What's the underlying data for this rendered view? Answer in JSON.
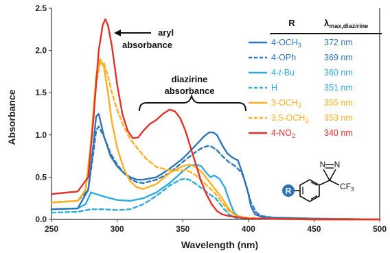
{
  "chart_data": {
    "type": "line",
    "title": "",
    "xlabel": "Wavelength (nm)",
    "ylabel": "Absorbance",
    "xlim": [
      250,
      500
    ],
    "ylim": [
      0,
      2.5
    ],
    "xticks": [
      250,
      300,
      350,
      400,
      450,
      500
    ],
    "yticks": [
      0.0,
      0.5,
      1.0,
      1.5,
      2.0,
      2.5
    ],
    "xtick_labels": [
      "250",
      "300",
      "350",
      "400",
      "450",
      "500"
    ],
    "ytick_labels": [
      "0.0",
      "0.5",
      "1.0",
      "1.5",
      "2.0",
      "2.5"
    ],
    "grid": false,
    "legend": {
      "placement": "top-right",
      "header_r": "R",
      "header_lambda_main": "λ",
      "header_lambda_sub": "max,diazirine"
    },
    "series": [
      {
        "name": "4-OCH3",
        "label_main": "4-OCH",
        "label_sub": "3",
        "lambda": "372 nm",
        "color": "#2E75B6",
        "dash": "solid",
        "x": [
          250,
          270,
          278,
          282,
          284,
          286,
          290,
          295,
          300,
          305,
          310,
          315,
          320,
          330,
          340,
          350,
          360,
          366,
          370,
          373,
          376,
          380,
          384,
          388,
          392,
          396,
          400,
          402,
          405,
          410,
          420,
          450,
          500
        ],
        "y": [
          0.12,
          0.13,
          0.35,
          0.9,
          1.22,
          1.25,
          0.98,
          0.75,
          0.63,
          0.55,
          0.5,
          0.47,
          0.47,
          0.5,
          0.6,
          0.72,
          0.88,
          0.98,
          1.03,
          1.03,
          1.0,
          0.88,
          0.78,
          0.73,
          0.7,
          0.52,
          0.3,
          0.15,
          0.06,
          0.03,
          0.02,
          0.01,
          0.0
        ]
      },
      {
        "name": "4-OPh",
        "label_main": "4-OPh",
        "label_sub": "",
        "lambda": "369 nm",
        "color": "#2E75B6",
        "dash": "dash",
        "x": [
          250,
          270,
          278,
          282,
          284,
          286,
          290,
          295,
          300,
          305,
          310,
          315,
          320,
          330,
          340,
          350,
          360,
          365,
          369,
          372,
          376,
          380,
          385,
          390,
          395,
          398,
          402,
          406,
          410,
          420,
          450,
          500
        ],
        "y": [
          0.2,
          0.22,
          0.35,
          0.8,
          1.05,
          1.1,
          0.98,
          0.78,
          0.65,
          0.55,
          0.48,
          0.44,
          0.43,
          0.47,
          0.55,
          0.68,
          0.8,
          0.85,
          0.87,
          0.86,
          0.82,
          0.75,
          0.68,
          0.63,
          0.55,
          0.42,
          0.2,
          0.08,
          0.04,
          0.02,
          0.01,
          0.0
        ]
      },
      {
        "name": "4-t-Bu",
        "label_main": "4-",
        "label_italic": "t",
        "label_tail": "-Bu",
        "label_sub": "",
        "lambda": "360 nm",
        "color": "#2EAADC",
        "dash": "solid",
        "x": [
          250,
          270,
          276,
          280,
          284,
          290,
          300,
          310,
          320,
          330,
          340,
          350,
          356,
          360,
          364,
          368,
          371,
          374,
          378,
          382,
          386,
          389,
          392,
          396,
          400,
          410,
          450,
          500
        ],
        "y": [
          0.12,
          0.13,
          0.18,
          0.32,
          0.3,
          0.27,
          0.23,
          0.22,
          0.25,
          0.32,
          0.43,
          0.57,
          0.64,
          0.65,
          0.63,
          0.55,
          0.5,
          0.52,
          0.48,
          0.38,
          0.2,
          0.08,
          0.04,
          0.02,
          0.01,
          0.01,
          0.0,
          0.0
        ]
      },
      {
        "name": "H",
        "label_main": "H",
        "label_sub": "",
        "lambda": "351 nm",
        "color": "#2EAADC",
        "dash": "dash",
        "x": [
          250,
          270,
          280,
          290,
          300,
          310,
          320,
          330,
          340,
          348,
          351,
          355,
          360,
          366,
          370,
          375,
          380,
          385,
          390,
          400,
          450,
          500
        ],
        "y": [
          0.08,
          0.09,
          0.12,
          0.12,
          0.11,
          0.12,
          0.18,
          0.28,
          0.4,
          0.47,
          0.48,
          0.47,
          0.42,
          0.35,
          0.3,
          0.25,
          0.15,
          0.06,
          0.02,
          0.01,
          0.0,
          0.0
        ]
      },
      {
        "name": "3-OCH3",
        "label_main": "3-OCH",
        "label_sub": "3",
        "lambda": "355 nm",
        "color": "#FFB020",
        "dash": "solid",
        "x": [
          250,
          270,
          276,
          280,
          284,
          287,
          290,
          293,
          296,
          300,
          305,
          310,
          315,
          320,
          330,
          340,
          350,
          355,
          360,
          365,
          370,
          375,
          380,
          384,
          388,
          392,
          395,
          400,
          410,
          450,
          500
        ],
        "y": [
          0.2,
          0.22,
          0.35,
          0.9,
          1.7,
          1.9,
          1.8,
          1.5,
          1.15,
          0.85,
          0.6,
          0.45,
          0.38,
          0.36,
          0.42,
          0.55,
          0.63,
          0.65,
          0.62,
          0.55,
          0.45,
          0.35,
          0.25,
          0.15,
          0.07,
          0.03,
          0.02,
          0.01,
          0.01,
          0.0,
          0.0
        ]
      },
      {
        "name": "3,5-OCH3",
        "label_main": "3,5-OCH",
        "label_sub": "3",
        "lambda": "353 nm",
        "color": "#FFB020",
        "dash": "dash",
        "x": [
          250,
          270,
          276,
          280,
          284,
          287,
          290,
          293,
          296,
          300,
          305,
          310,
          316,
          322,
          330,
          340,
          350,
          353,
          356,
          360,
          365,
          370,
          375,
          380,
          385,
          390,
          395,
          400,
          410,
          450,
          500
        ],
        "y": [
          0.2,
          0.22,
          0.35,
          0.9,
          1.6,
          1.85,
          1.85,
          1.7,
          1.5,
          1.3,
          1.1,
          0.95,
          0.83,
          0.72,
          0.62,
          0.58,
          0.58,
          0.58,
          0.56,
          0.52,
          0.45,
          0.38,
          0.3,
          0.2,
          0.1,
          0.05,
          0.03,
          0.02,
          0.01,
          0.0,
          0.0
        ]
      },
      {
        "name": "4-NO2",
        "label_main": "4-NO",
        "label_sub": "2",
        "lambda": "340 nm",
        "color": "#E0302A",
        "dash": "solid",
        "x": [
          250,
          270,
          278,
          282,
          286,
          289,
          291,
          293,
          296,
          300,
          304,
          308,
          312,
          316,
          320,
          325,
          330,
          335,
          340,
          344,
          348,
          352,
          356,
          360,
          364,
          368,
          372,
          376,
          380,
          385,
          390,
          400,
          410,
          450,
          500
        ],
        "y": [
          0.3,
          0.33,
          0.5,
          1.2,
          2.0,
          2.3,
          2.37,
          2.3,
          2.05,
          1.6,
          1.25,
          1.05,
          0.96,
          0.97,
          1.05,
          1.13,
          1.18,
          1.25,
          1.3,
          1.28,
          1.2,
          1.05,
          0.85,
          0.65,
          0.45,
          0.3,
          0.18,
          0.1,
          0.06,
          0.04,
          0.03,
          0.01,
          0.01,
          0.0,
          0.0
        ]
      }
    ],
    "annotations": {
      "aryl_line1": "aryl",
      "aryl_line2": "absorbance",
      "diazirine_line1": "diazirine",
      "diazirine_line2": "absorbance"
    },
    "structure": {
      "substituent": "R",
      "n1": "N",
      "n2": "N",
      "cf3_main": "CF",
      "cf3_sub": "3",
      "r_color": "#2E75B6"
    }
  }
}
